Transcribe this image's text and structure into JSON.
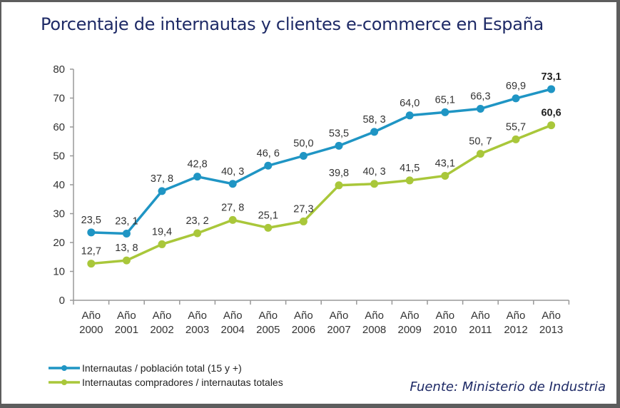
{
  "chart_data": {
    "type": "line",
    "title": "Porcentaje de internautas y clientes e-commerce en España",
    "xlabel": "",
    "ylabel": "",
    "categories": [
      [
        "Año",
        "2000"
      ],
      [
        "Año",
        "2001"
      ],
      [
        "Año",
        "2002"
      ],
      [
        "Año",
        "2003"
      ],
      [
        "Año",
        "2004"
      ],
      [
        "Año",
        "2005"
      ],
      [
        "Año",
        "2006"
      ],
      [
        "Año",
        "2007"
      ],
      [
        "Año",
        "2008"
      ],
      [
        "Año",
        "2009"
      ],
      [
        "Año",
        "2010"
      ],
      [
        "Año",
        "2011"
      ],
      [
        "Año",
        "2012"
      ],
      [
        "Año",
        "2013"
      ]
    ],
    "ylim": [
      0,
      80
    ],
    "yticks": [
      0,
      10,
      20,
      30,
      40,
      50,
      60,
      70,
      80
    ],
    "grid": false,
    "legend_position": "bottom-left",
    "series": [
      {
        "name": "Internautas / población total (15 y +)",
        "color": "#1f95c4",
        "values": [
          23.5,
          23.1,
          37.8,
          42.8,
          40.3,
          46.6,
          50.0,
          53.5,
          58.3,
          64.0,
          65.1,
          66.3,
          69.9,
          73.1
        ],
        "labels": [
          "23,5",
          "23, 1",
          "37, 8",
          "42,8",
          "40, 3",
          "46, 6",
          "50,0",
          "53,5",
          "58, 3",
          "64,0",
          "65,1",
          "66,3",
          "69,9",
          "73,1"
        ]
      },
      {
        "name": "Internautas compradores / internautas totales",
        "color": "#a9c73a",
        "values": [
          12.7,
          13.8,
          19.4,
          23.2,
          27.8,
          25.1,
          27.3,
          39.8,
          40.3,
          41.5,
          43.1,
          50.7,
          55.7,
          60.6
        ],
        "labels": [
          "12,7",
          "13, 8",
          "19,4",
          "23, 2",
          "27, 8",
          "25,1",
          "27,3",
          "39,8",
          "40, 3",
          "41,5",
          "43,1",
          "50, 7",
          "55,7",
          "60,6"
        ]
      }
    ],
    "source": "Fuente: Ministerio de Industria"
  }
}
